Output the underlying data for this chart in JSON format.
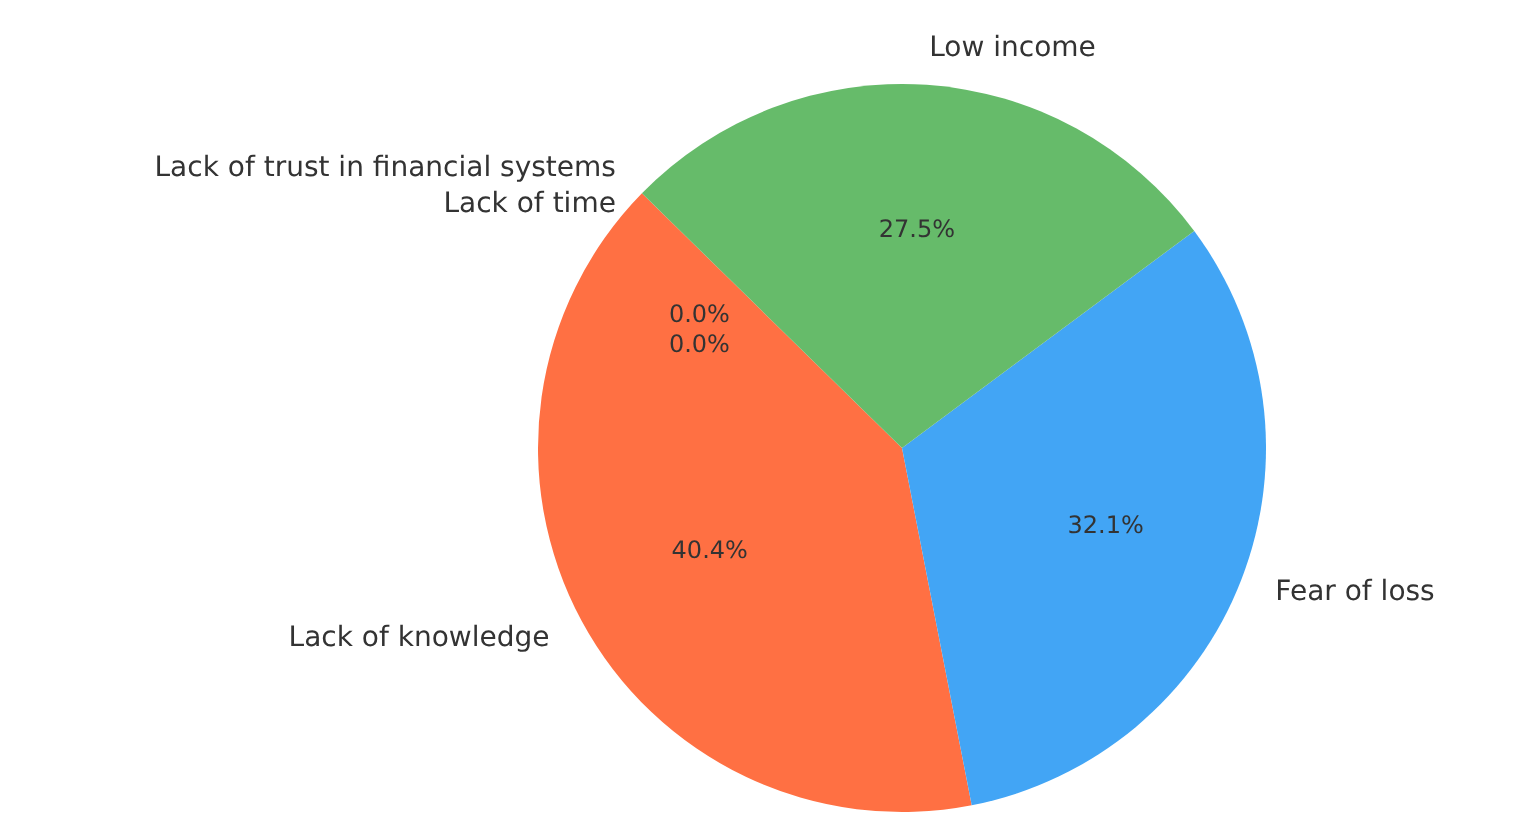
{
  "chart_data": {
    "type": "pie",
    "categories": [
      "Lack of knowledge",
      "Fear of loss",
      "Low income",
      "Lack of trust in financial systems",
      "Lack of time"
    ],
    "values": [
      40.4,
      32.1,
      27.5,
      0.0,
      0.0
    ],
    "value_labels": [
      "40.4%",
      "32.1%",
      "27.5%",
      "0.0%",
      "0.0%"
    ],
    "colors": [
      "#ff7043",
      "#42a5f5",
      "#66bb6a",
      "#ffca28",
      "#ab47bc"
    ]
  }
}
